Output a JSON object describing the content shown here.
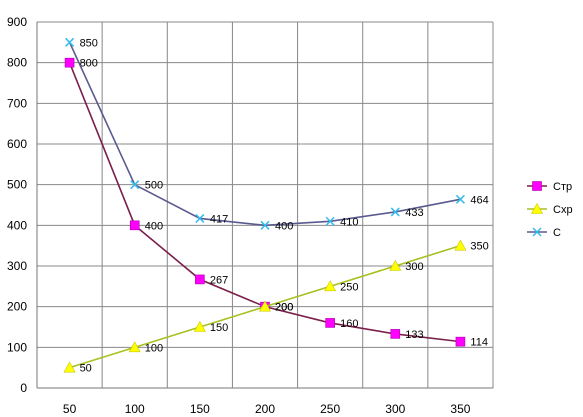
{
  "chart_data": {
    "type": "line",
    "x": [
      50,
      100,
      150,
      200,
      250,
      300,
      350
    ],
    "ylim": [
      0,
      900
    ],
    "yticks": [
      0,
      100,
      200,
      300,
      400,
      500,
      600,
      700,
      800,
      900
    ],
    "grid": true,
    "legend_position": "right",
    "series": [
      {
        "name": "Стр",
        "values": [
          800,
          400,
          267,
          200,
          160,
          133,
          114
        ],
        "labels": [
          "800",
          "400",
          "267",
          "200",
          "160",
          "133",
          "114"
        ],
        "color": "#ff00ff",
        "line_color": "#7a1f4a",
        "marker": "square"
      },
      {
        "name": "Схр",
        "values": [
          50,
          100,
          150,
          200,
          250,
          300,
          350
        ],
        "labels": [
          "50",
          "100",
          "150",
          "200",
          "250",
          "300",
          "350"
        ],
        "color": "#ffff00",
        "line_color": "#a8c020",
        "marker": "triangle"
      },
      {
        "name": "С",
        "values": [
          850,
          500,
          417,
          400,
          410,
          433,
          464
        ],
        "labels": [
          "850",
          "500",
          "417",
          "400",
          "410",
          "433",
          "464"
        ],
        "color": "#33bbee",
        "line_color": "#5a5a90",
        "marker": "x"
      }
    ]
  }
}
